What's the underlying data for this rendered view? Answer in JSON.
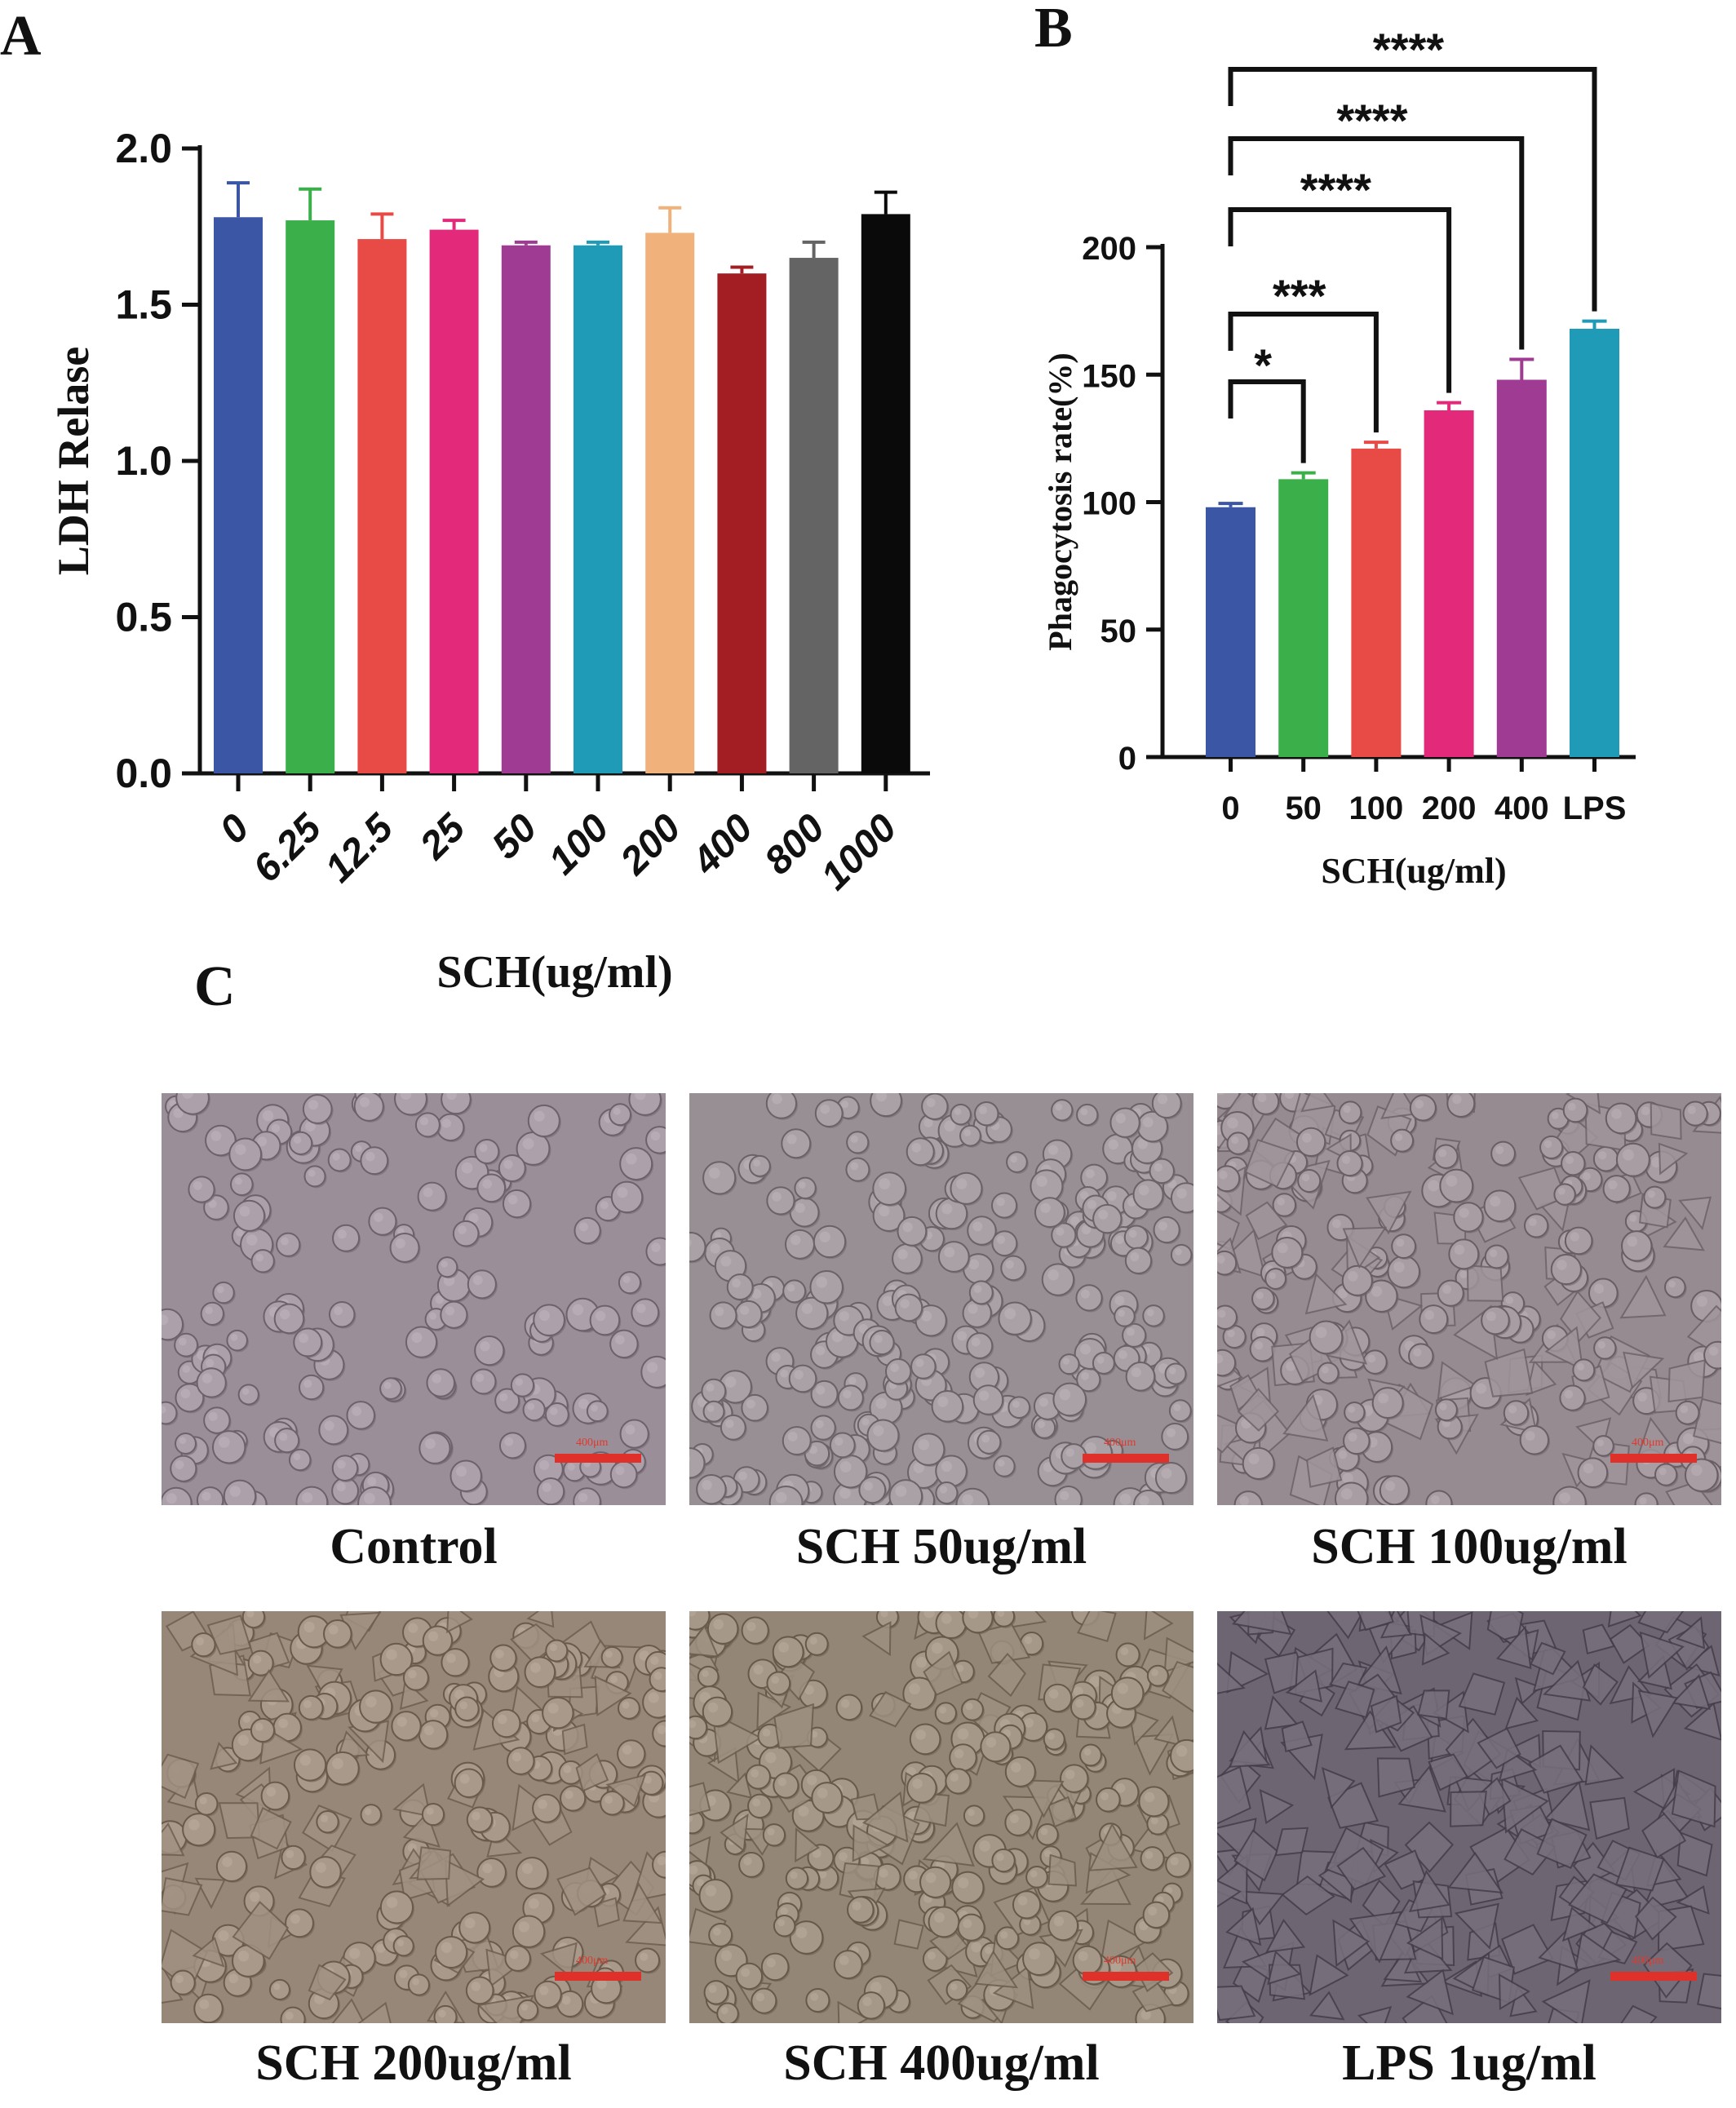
{
  "panel_labels": {
    "a": "A",
    "b": "B",
    "c": "C"
  },
  "chart_data": [
    {
      "id": "A",
      "type": "bar",
      "xlabel": "SCH(ug/ml)",
      "ylabel": "LDH Relase",
      "ylim": [
        0,
        2.0
      ],
      "yticks": [
        0.0,
        0.5,
        1.0,
        1.5,
        2.0
      ],
      "ytick_labels": [
        "0.0",
        "0.5",
        "1.0",
        "1.5",
        "2.0"
      ],
      "categories": [
        "0",
        "6.25",
        "12.5",
        "25",
        "50",
        "100",
        "200",
        "400",
        "800",
        "1000"
      ],
      "values": [
        1.78,
        1.77,
        1.71,
        1.74,
        1.69,
        1.69,
        1.73,
        1.6,
        1.65,
        1.79
      ],
      "errors": [
        0.11,
        0.1,
        0.08,
        0.03,
        0.01,
        0.01,
        0.08,
        0.02,
        0.05,
        0.07
      ],
      "colors": [
        "#3a56a4",
        "#3bb04a",
        "#e84a45",
        "#e2297a",
        "#a03b94",
        "#1f9bb8",
        "#f0b27a",
        "#a31e22",
        "#646464",
        "#0a0a0a"
      ],
      "grid": false,
      "legend": "none"
    },
    {
      "id": "B",
      "type": "bar",
      "xlabel": "SCH(ug/ml)",
      "ylabel": "Phagocytosis rate(%)",
      "ylim": [
        0,
        200
      ],
      "yticks": [
        0,
        50,
        100,
        150,
        200
      ],
      "ytick_labels": [
        "0",
        "50",
        "100",
        "150",
        "200"
      ],
      "categories": [
        "0",
        "50",
        "100",
        "200",
        "400",
        "LPS"
      ],
      "values": [
        98,
        109,
        121,
        136,
        148,
        168
      ],
      "errors": [
        1.5,
        2.5,
        2.5,
        3,
        8,
        3
      ],
      "colors": [
        "#3a56a4",
        "#3bb04a",
        "#e84a45",
        "#e2297a",
        "#a03b94",
        "#1f9bb8"
      ],
      "grid": false,
      "legend": "none",
      "significance": [
        {
          "from": "0",
          "to": "50",
          "label": "*"
        },
        {
          "from": "0",
          "to": "100",
          "label": "***"
        },
        {
          "from": "0",
          "to": "200",
          "label": "****"
        },
        {
          "from": "0",
          "to": "400",
          "label": "****"
        },
        {
          "from": "0",
          "to": "LPS",
          "label": "****"
        }
      ]
    }
  ],
  "micrographs": [
    {
      "caption": "Control",
      "scale_bar": "400μm",
      "tint": "#9a8e98",
      "cell_count": 150,
      "cell_style": "round"
    },
    {
      "caption": "SCH 50ug/ml",
      "scale_bar": "400μm",
      "tint": "#978f93",
      "cell_count": 230,
      "cell_style": "round"
    },
    {
      "caption": "SCH 100ug/ml",
      "scale_bar": "400μm",
      "tint": "#958b90",
      "cell_count": 250,
      "cell_style": "mixed"
    },
    {
      "caption": "SCH 200ug/ml",
      "scale_bar": "400μm",
      "tint": "#968778",
      "cell_count": 240,
      "cell_style": "mixed"
    },
    {
      "caption": "SCH 400ug/ml",
      "scale_bar": "400μm",
      "tint": "#948676",
      "cell_count": 270,
      "cell_style": "mixed"
    },
    {
      "caption": "LPS 1ug/ml",
      "scale_bar": "400μm",
      "tint": "#6e6573",
      "cell_count": 210,
      "cell_style": "spread"
    }
  ],
  "colors": {
    "scale_bar": "#e0302a",
    "axis": "#111111"
  }
}
